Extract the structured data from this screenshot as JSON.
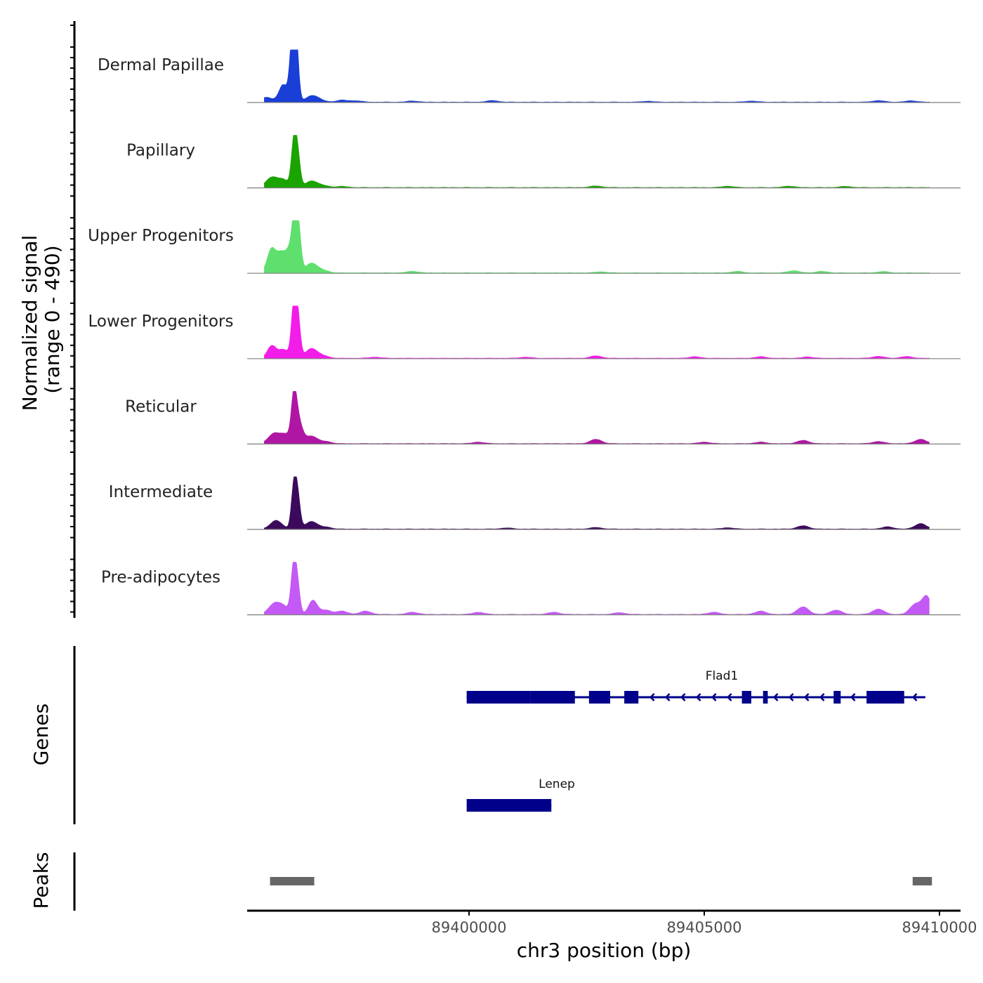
{
  "chart_data": {
    "type": "area",
    "title": "",
    "ylabel": "Normalized signal",
    "ylabel_range": "(range 0 - 490)",
    "xlabel": "chr3 position (bp)",
    "xlim": [
      89395000,
      89410000
    ],
    "ylim": [
      0,
      490
    ],
    "x_ticks": [
      89400000,
      89405000,
      89410000
    ],
    "x_tick_labels": [
      "89400000",
      "89405000",
      "89410000"
    ],
    "series": [
      {
        "name": "Dermal Papillae",
        "color": "#1a3fd6",
        "peaks": [
          [
            89395700,
            45
          ],
          [
            89396050,
            160
          ],
          [
            89396230,
            340
          ],
          [
            89396290,
            480
          ],
          [
            89396330,
            300
          ],
          [
            89396650,
            55
          ],
          [
            89396820,
            18
          ],
          [
            89397300,
            18
          ],
          [
            89397600,
            12
          ],
          [
            89398800,
            10
          ],
          [
            89400500,
            14
          ],
          [
            89403800,
            8
          ],
          [
            89406000,
            10
          ],
          [
            89408700,
            14
          ],
          [
            89409400,
            12
          ]
        ]
      },
      {
        "name": "Papillary",
        "color": "#1ba300",
        "peaks": [
          [
            89395800,
            90
          ],
          [
            89396050,
            70
          ],
          [
            89396280,
            420
          ],
          [
            89396360,
            260
          ],
          [
            89396650,
            60
          ],
          [
            89396900,
            18
          ],
          [
            89397300,
            10
          ],
          [
            89402700,
            14
          ],
          [
            89405500,
            12
          ],
          [
            89406800,
            12
          ],
          [
            89408000,
            10
          ]
        ]
      },
      {
        "name": "Upper Progenitors",
        "color": "#5fe06e",
        "peaks": [
          [
            89395800,
            220
          ],
          [
            89396000,
            170
          ],
          [
            89396200,
            220
          ],
          [
            89396300,
            460
          ],
          [
            89396380,
            320
          ],
          [
            89396650,
            90
          ],
          [
            89396900,
            22
          ],
          [
            89398800,
            14
          ],
          [
            89402800,
            10
          ],
          [
            89405700,
            14
          ],
          [
            89406900,
            20
          ],
          [
            89407500,
            14
          ],
          [
            89408800,
            12
          ]
        ]
      },
      {
        "name": "Lower Progenitors",
        "color": "#f21de8",
        "peaks": [
          [
            89395800,
            110
          ],
          [
            89396050,
            80
          ],
          [
            89396280,
            480
          ],
          [
            89396360,
            340
          ],
          [
            89396650,
            90
          ],
          [
            89396900,
            22
          ],
          [
            89398000,
            10
          ],
          [
            89401200,
            10
          ],
          [
            89402700,
            22
          ],
          [
            89404800,
            14
          ],
          [
            89406200,
            14
          ],
          [
            89407200,
            12
          ],
          [
            89408700,
            18
          ],
          [
            89409300,
            16
          ]
        ]
      },
      {
        "name": "Reticular",
        "color": "#b016a4",
        "peaks": [
          [
            89395850,
            90
          ],
          [
            89396100,
            80
          ],
          [
            89396280,
            350
          ],
          [
            89396360,
            230
          ],
          [
            89396650,
            70
          ],
          [
            89396950,
            20
          ],
          [
            89400200,
            14
          ],
          [
            89402700,
            40
          ],
          [
            89405000,
            14
          ],
          [
            89406200,
            14
          ],
          [
            89407100,
            30
          ],
          [
            89408700,
            20
          ],
          [
            89409600,
            40
          ]
        ]
      },
      {
        "name": "Intermediate",
        "color": "#3c0a5c",
        "peaks": [
          [
            89395900,
            80
          ],
          [
            89396280,
            400
          ],
          [
            89396360,
            260
          ],
          [
            89396650,
            70
          ],
          [
            89396950,
            18
          ],
          [
            89400800,
            10
          ],
          [
            89402700,
            14
          ],
          [
            89405500,
            12
          ],
          [
            89407100,
            30
          ],
          [
            89408900,
            20
          ],
          [
            89409600,
            50
          ]
        ]
      },
      {
        "name": "Pre-adipocytes",
        "color": "#c45af5",
        "peaks": [
          [
            89395850,
            90
          ],
          [
            89396050,
            70
          ],
          [
            89396270,
            420
          ],
          [
            89396350,
            260
          ],
          [
            89396680,
            130
          ],
          [
            89396950,
            40
          ],
          [
            89397300,
            30
          ],
          [
            89397800,
            30
          ],
          [
            89398800,
            20
          ],
          [
            89400200,
            20
          ],
          [
            89401800,
            20
          ],
          [
            89403200,
            16
          ],
          [
            89405200,
            20
          ],
          [
            89406200,
            30
          ],
          [
            89407100,
            70
          ],
          [
            89407800,
            40
          ],
          [
            89408700,
            50
          ],
          [
            89409500,
            100
          ],
          [
            89409730,
            160
          ]
        ]
      }
    ],
    "genes": [
      {
        "name": "Flad1",
        "start": 89399950,
        "end": 89409700,
        "strand": "-",
        "exons": [
          [
            89399950,
            89401300
          ],
          [
            89401300,
            89402250
          ],
          [
            89402550,
            89403000
          ],
          [
            89403300,
            89403600
          ],
          [
            89405800,
            89406000
          ],
          [
            89406250,
            89406350
          ],
          [
            89407750,
            89407900
          ],
          [
            89408450,
            89409250
          ]
        ]
      },
      {
        "name": "Lenep",
        "start": 89399950,
        "end": 89401750,
        "strand": "+",
        "exons": [
          [
            89399950,
            89401750
          ]
        ]
      }
    ],
    "peaks": [
      [
        89395770,
        89396710
      ],
      [
        89409430,
        89409840
      ]
    ],
    "panels": {
      "genes_label": "Genes",
      "peaks_label": "Peaks"
    },
    "colors": {
      "gene": "#00008b",
      "peak": "#666666",
      "axis": "#000000",
      "baseline": "#7f7f7f"
    }
  }
}
